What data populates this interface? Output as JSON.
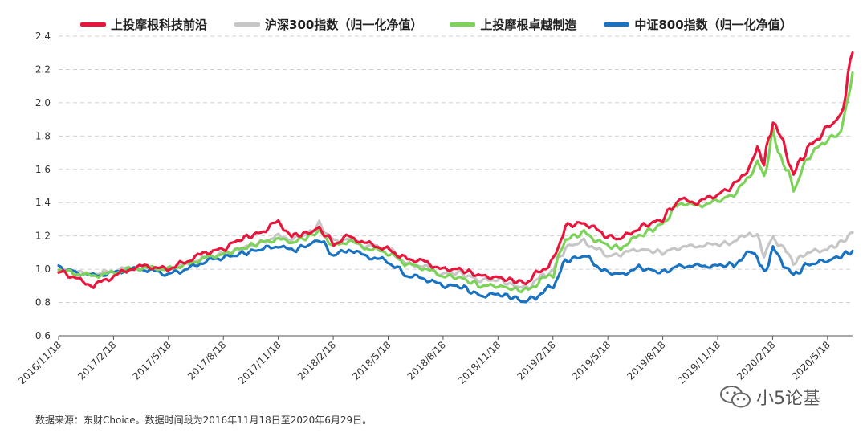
{
  "chart_data": {
    "type": "line",
    "title": "",
    "xlabel": "",
    "ylabel": "",
    "ylim": [
      0.6,
      2.4
    ],
    "yticks": [
      "0.6",
      "0.8",
      "1.0",
      "1.2",
      "1.4",
      "1.6",
      "1.8",
      "2.0",
      "2.2",
      "2.4"
    ],
    "x_tick_labels": [
      "2016/11/18",
      "2017/2/18",
      "2017/5/18",
      "2017/8/18",
      "2017/11/18",
      "2018/2/18",
      "2018/5/18",
      "2018/8/18",
      "2018/11/18",
      "2019/2/18",
      "2019/5/18",
      "2019/8/18",
      "2019/11/18",
      "2020/2/18",
      "2020/5/18"
    ],
    "grid": "horizontal-dashed",
    "legend_position": "top",
    "series": [
      {
        "name": "上投摩根科技前沿",
        "color": "#e8163c",
        "x": [
          "2016-11-18",
          "2016-12-20",
          "2017-01-15",
          "2017-02-18",
          "2017-03-15",
          "2017-04-10",
          "2017-05-18",
          "2017-06-20",
          "2017-07-20",
          "2017-08-18",
          "2017-09-15",
          "2017-10-20",
          "2017-11-18",
          "2017-12-10",
          "2018-01-10",
          "2018-01-25",
          "2018-02-18",
          "2018-03-15",
          "2018-04-10",
          "2018-05-18",
          "2018-06-20",
          "2018-07-15",
          "2018-08-18",
          "2018-09-15",
          "2018-10-20",
          "2018-11-18",
          "2018-12-15",
          "2019-01-03",
          "2019-02-18",
          "2019-03-10",
          "2019-04-10",
          "2019-05-18",
          "2019-06-10",
          "2019-07-10",
          "2019-08-18",
          "2019-09-15",
          "2019-10-15",
          "2019-11-18",
          "2019-12-15",
          "2020-01-10",
          "2020-01-23",
          "2020-02-03",
          "2020-02-18",
          "2020-03-23",
          "2020-04-15",
          "2020-05-18",
          "2020-06-10",
          "2020-06-29"
        ],
        "values": [
          0.99,
          0.94,
          0.9,
          0.96,
          1.0,
          1.02,
          1.0,
          1.05,
          1.1,
          1.12,
          1.18,
          1.22,
          1.29,
          1.2,
          1.22,
          1.25,
          1.15,
          1.2,
          1.16,
          1.12,
          1.06,
          1.05,
          1.0,
          1.0,
          0.96,
          0.95,
          0.93,
          0.92,
          1.05,
          1.26,
          1.28,
          1.2,
          1.18,
          1.25,
          1.3,
          1.42,
          1.4,
          1.45,
          1.5,
          1.62,
          1.72,
          1.64,
          1.9,
          1.58,
          1.72,
          1.85,
          1.92,
          2.3
        ]
      },
      {
        "name": "沪深300指数（归一化净值）",
        "color": "#c6c6c6",
        "x": [
          "2016-11-18",
          "2016-12-20",
          "2017-01-15",
          "2017-02-18",
          "2017-03-15",
          "2017-04-10",
          "2017-05-18",
          "2017-06-20",
          "2017-07-20",
          "2017-08-18",
          "2017-09-15",
          "2017-10-20",
          "2017-11-18",
          "2017-12-10",
          "2018-01-10",
          "2018-01-25",
          "2018-02-18",
          "2018-03-15",
          "2018-04-10",
          "2018-05-18",
          "2018-06-20",
          "2018-07-15",
          "2018-08-18",
          "2018-09-15",
          "2018-10-20",
          "2018-11-18",
          "2018-12-15",
          "2019-01-03",
          "2019-02-18",
          "2019-03-10",
          "2019-04-10",
          "2019-05-18",
          "2019-06-10",
          "2019-07-10",
          "2019-08-18",
          "2019-09-15",
          "2019-10-15",
          "2019-11-18",
          "2019-12-15",
          "2020-01-10",
          "2020-01-23",
          "2020-02-03",
          "2020-02-18",
          "2020-03-23",
          "2020-04-15",
          "2020-05-18",
          "2020-06-10",
          "2020-06-29"
        ],
        "values": [
          1.0,
          0.98,
          0.97,
          0.99,
          1.01,
          1.0,
          1.0,
          1.03,
          1.07,
          1.09,
          1.12,
          1.16,
          1.2,
          1.18,
          1.22,
          1.27,
          1.17,
          1.18,
          1.14,
          1.13,
          1.03,
          1.02,
          0.97,
          0.98,
          0.93,
          0.94,
          0.9,
          0.89,
          1.0,
          1.13,
          1.17,
          1.08,
          1.09,
          1.12,
          1.1,
          1.13,
          1.14,
          1.15,
          1.16,
          1.22,
          1.2,
          1.08,
          1.2,
          1.04,
          1.1,
          1.12,
          1.16,
          1.22
        ]
      },
      {
        "name": "上投摩根卓越制造",
        "color": "#7dd35a",
        "x": [
          "2016-11-18",
          "2016-12-20",
          "2017-01-15",
          "2017-02-18",
          "2017-03-15",
          "2017-04-10",
          "2017-05-18",
          "2017-06-20",
          "2017-07-20",
          "2017-08-18",
          "2017-09-15",
          "2017-10-20",
          "2017-11-18",
          "2017-12-10",
          "2018-01-10",
          "2018-01-25",
          "2018-02-18",
          "2018-03-15",
          "2018-04-10",
          "2018-05-18",
          "2018-06-20",
          "2018-07-15",
          "2018-08-18",
          "2018-09-15",
          "2018-10-20",
          "2018-11-18",
          "2018-12-15",
          "2019-01-03",
          "2019-02-18",
          "2019-03-10",
          "2019-04-10",
          "2019-05-18",
          "2019-06-10",
          "2019-07-10",
          "2019-08-18",
          "2019-09-15",
          "2019-10-15",
          "2019-11-18",
          "2019-12-15",
          "2020-01-10",
          "2020-01-23",
          "2020-02-03",
          "2020-02-18",
          "2020-03-23",
          "2020-04-15",
          "2020-05-18",
          "2020-06-10",
          "2020-06-29"
        ],
        "values": [
          1.0,
          0.97,
          0.96,
          0.98,
          1.0,
          1.01,
          1.0,
          1.03,
          1.07,
          1.09,
          1.12,
          1.16,
          1.18,
          1.16,
          1.2,
          1.23,
          1.14,
          1.17,
          1.13,
          1.1,
          1.03,
          1.01,
          0.96,
          0.95,
          0.9,
          0.9,
          0.88,
          0.87,
          0.98,
          1.18,
          1.22,
          1.14,
          1.13,
          1.2,
          1.27,
          1.4,
          1.38,
          1.41,
          1.45,
          1.55,
          1.66,
          1.55,
          1.82,
          1.47,
          1.67,
          1.78,
          1.82,
          2.18
        ]
      },
      {
        "name": "中证800指数（归一化净值）",
        "color": "#1a73c1",
        "x": [
          "2016-11-18",
          "2016-12-20",
          "2017-01-15",
          "2017-02-18",
          "2017-03-15",
          "2017-04-10",
          "2017-05-18",
          "2017-06-20",
          "2017-07-20",
          "2017-08-18",
          "2017-09-15",
          "2017-10-20",
          "2017-11-18",
          "2017-12-10",
          "2018-01-10",
          "2018-01-25",
          "2018-02-18",
          "2018-03-15",
          "2018-04-10",
          "2018-05-18",
          "2018-06-20",
          "2018-07-15",
          "2018-08-18",
          "2018-09-15",
          "2018-10-20",
          "2018-11-18",
          "2018-12-15",
          "2019-01-03",
          "2019-02-18",
          "2019-03-10",
          "2019-04-10",
          "2019-05-18",
          "2019-06-10",
          "2019-07-10",
          "2019-08-18",
          "2019-09-15",
          "2019-10-15",
          "2019-11-18",
          "2019-12-15",
          "2020-01-10",
          "2020-01-23",
          "2020-02-03",
          "2020-02-18",
          "2020-03-23",
          "2020-04-15",
          "2020-05-18",
          "2020-06-10",
          "2020-06-29"
        ],
        "values": [
          1.01,
          0.98,
          0.96,
          0.98,
          1.0,
          1.0,
          0.97,
          1.0,
          1.05,
          1.07,
          1.09,
          1.12,
          1.14,
          1.11,
          1.15,
          1.18,
          1.08,
          1.12,
          1.08,
          1.05,
          0.96,
          0.95,
          0.9,
          0.9,
          0.84,
          0.85,
          0.83,
          0.8,
          0.9,
          1.05,
          1.08,
          0.98,
          0.97,
          1.01,
          0.98,
          1.02,
          1.02,
          1.02,
          1.03,
          1.1,
          1.08,
          0.97,
          1.12,
          0.96,
          1.03,
          1.05,
          1.08,
          1.11
        ]
      }
    ]
  },
  "footnote": "数据来源：东财Choice。数据时间段为2016年11月18日至2020年6月29日。",
  "watermark": {
    "text": "小5论基",
    "icon": "wechat-icon"
  }
}
